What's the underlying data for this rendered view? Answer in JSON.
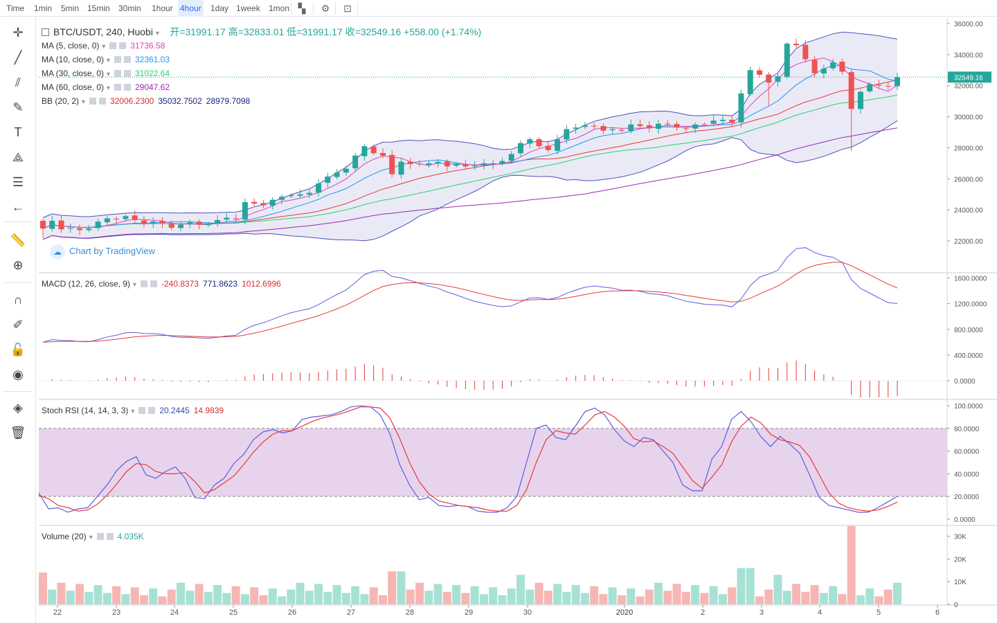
{
  "toolbar": {
    "timeframes": [
      "Time",
      "1min",
      "5min",
      "15min",
      "30min",
      "1hour",
      "4hour",
      "1day",
      "1week",
      "1mon"
    ],
    "active": "4hour"
  },
  "symbol": {
    "name": "BTC/USDT, 240, Huobi",
    "ohlc": "开=31991.17  高=32833.01  低=31991.17  收=32549.16  +558.00 (+1.74%)",
    "last": "32549.16"
  },
  "legend": {
    "ma5": {
      "label": "MA (5, close, 0)",
      "value": "31736.58",
      "color": "#e040b5"
    },
    "ma10": {
      "label": "MA (10, close, 0)",
      "value": "32361.03",
      "color": "#2196f3"
    },
    "ma30": {
      "label": "MA (30, close, 0)",
      "value": "31022.64",
      "color": "#2ecc71"
    },
    "ma60": {
      "label": "MA (60, close, 0)",
      "value": "29047.62",
      "color": "#9c27b0"
    },
    "bb": {
      "label": "BB (20, 2)",
      "v1": "32006.2300",
      "v2": "35032.7502",
      "v3": "28979.7098"
    },
    "macd": {
      "label": "MACD (12, 26, close, 9)",
      "v1": "-240.8373",
      "v2": "771.8623",
      "v3": "1012.6996"
    },
    "stoch": {
      "label": "Stoch RSI (14, 14, 3, 3)",
      "v1": "20.2445",
      "v2": "14.9839"
    },
    "volume": {
      "label": "Volume (20)",
      "v1": "4.035K"
    }
  },
  "watermark": "Chart by TradingView",
  "axes": {
    "price_ticks": [
      "36000.00",
      "34000.00",
      "32000.00",
      "30000.00",
      "28000.00",
      "26000.00",
      "24000.00",
      "22000.00"
    ],
    "macd_ticks": [
      "1600.0000",
      "1200.0000",
      "800.0000",
      "400.0000",
      "0.0000"
    ],
    "stoch_ticks": [
      "100.0000",
      "80.0000",
      "60.0000",
      "40.0000",
      "20.0000",
      "0.0000"
    ],
    "vol_ticks": [
      "30K",
      "20K",
      "10K",
      "0"
    ],
    "time_labels": [
      "22",
      "23",
      "24",
      "25",
      "26",
      "27",
      "28",
      "29",
      "30",
      "2020",
      "2",
      "3",
      "4",
      "5",
      "6"
    ]
  },
  "colors": {
    "up": "#26a69a",
    "down": "#ef5350",
    "bbfill": "#e6e6f5",
    "stochband": "#e7d4ec"
  },
  "chart_data": {
    "type": "candlestick",
    "ohlc_close": [
      22800,
      23300,
      22750,
      22850,
      22700,
      22800,
      23250,
      23450,
      23400,
      23600,
      23350,
      23100,
      23250,
      23150,
      22850,
      23050,
      23200,
      23050,
      23100,
      23350,
      23500,
      23400,
      24500,
      24400,
      24300,
      24650,
      24850,
      24950,
      25000,
      25100,
      25700,
      26150,
      26400,
      26650,
      27500,
      28100,
      27650,
      27500,
      26300,
      27100,
      26950,
      26950,
      27000,
      27100,
      26800,
      26950,
      26800,
      26850,
      27000,
      27000,
      27150,
      27600,
      28300,
      28550,
      28100,
      27850,
      28550,
      29200,
      29300,
      29450,
      29400,
      29100,
      29200,
      29100,
      29500,
      29400,
      29250,
      29550,
      29500,
      29300,
      29250,
      29500,
      29500,
      29750,
      29800,
      29600,
      31500,
      33000,
      32700,
      32200,
      32600,
      34700,
      34600,
      33700,
      32800,
      33100,
      33500,
      32900,
      30500,
      31600,
      32100,
      32000,
      31950,
      32549
    ],
    "stoch_k": [
      23,
      9,
      10,
      6,
      9,
      10,
      20,
      30,
      43,
      51,
      55,
      39,
      36,
      42,
      46,
      36,
      19,
      18,
      30,
      36,
      49,
      57,
      70,
      77,
      79,
      76,
      78,
      88,
      90,
      91,
      92,
      95,
      99,
      100,
      99,
      92,
      75,
      48,
      30,
      17,
      19,
      12,
      11,
      12,
      11,
      7,
      6,
      6,
      10,
      20,
      50,
      80,
      83,
      72,
      70,
      82,
      95,
      98,
      92,
      79,
      69,
      64,
      72,
      70,
      60,
      50,
      30,
      25,
      25,
      53,
      64,
      88,
      95,
      86,
      73,
      64,
      73,
      66,
      58,
      39,
      19,
      12,
      10,
      8,
      6,
      6,
      10,
      15,
      20
    ],
    "stoch_d": [
      21,
      18,
      12,
      10,
      7,
      8,
      13,
      21,
      31,
      42,
      49,
      48,
      42,
      40,
      40,
      41,
      33,
      23,
      26,
      32,
      38,
      48,
      59,
      68,
      75,
      78,
      78,
      82,
      86,
      89,
      91,
      93,
      96,
      99,
      99,
      98,
      89,
      71,
      50,
      33,
      22,
      16,
      14,
      12,
      11,
      10,
      8,
      7,
      7,
      12,
      26,
      50,
      70,
      78,
      76,
      75,
      83,
      92,
      95,
      90,
      82,
      71,
      68,
      69,
      64,
      58,
      46,
      34,
      27,
      37,
      48,
      68,
      82,
      90,
      85,
      75,
      70,
      68,
      65,
      55,
      39,
      23,
      14,
      10,
      8,
      7,
      8,
      11,
      15
    ]
  }
}
